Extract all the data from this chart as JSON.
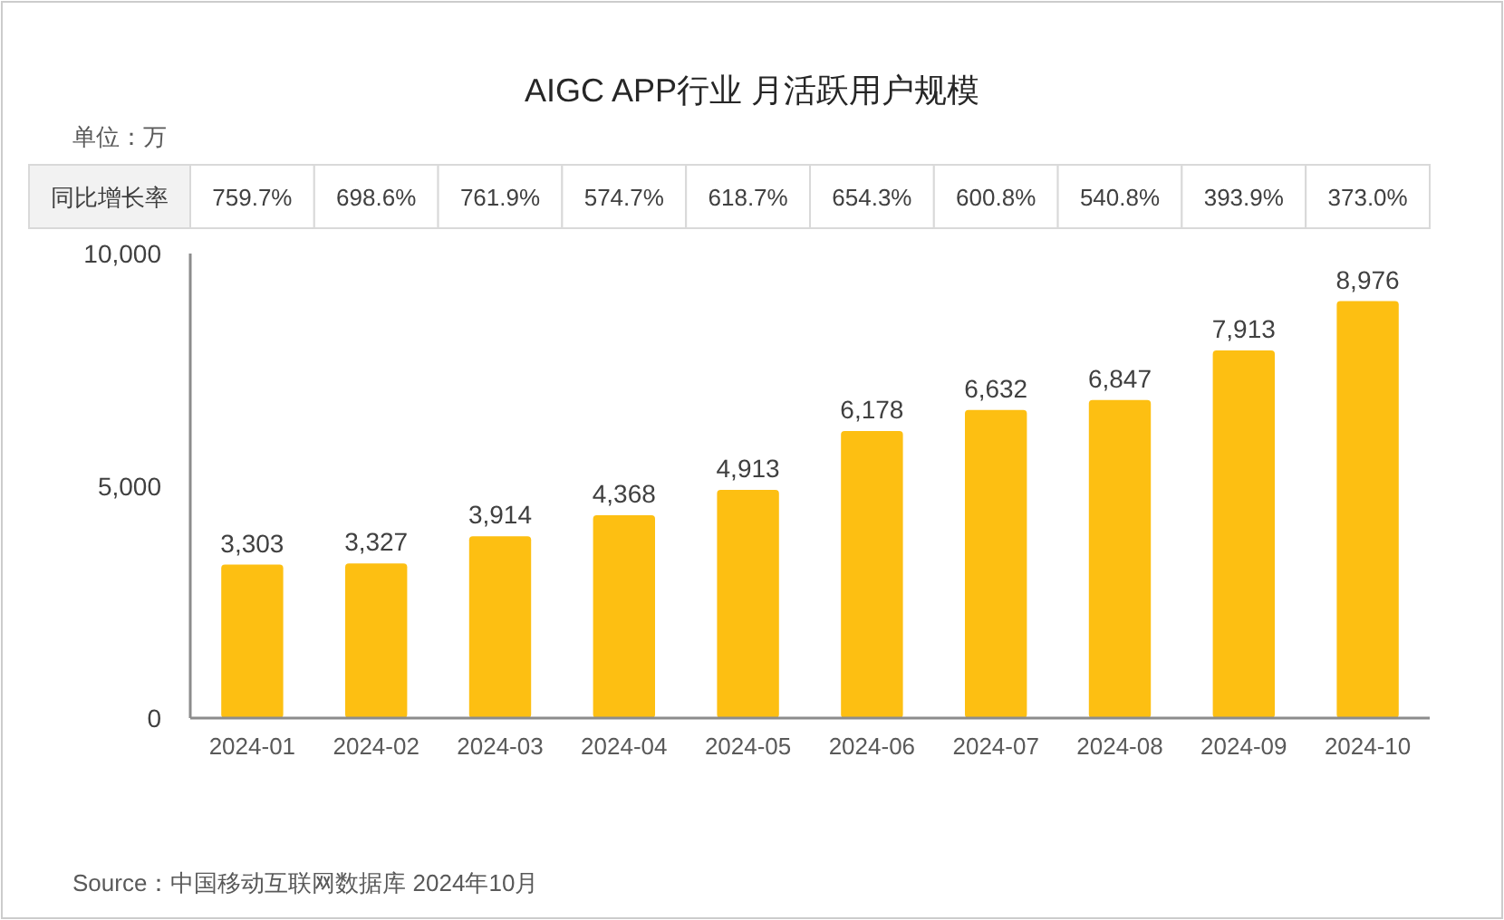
{
  "chart_data": {
    "type": "bar",
    "title": "AIGC APP行业 月活跃用户规模",
    "ylabel": "单位：万",
    "categories": [
      "2024-01",
      "2024-02",
      "2024-03",
      "2024-04",
      "2024-05",
      "2024-06",
      "2024-07",
      "2024-08",
      "2024-09",
      "2024-10"
    ],
    "values": [
      3303,
      3327,
      3914,
      4368,
      4913,
      6178,
      6632,
      6847,
      7913,
      8976
    ],
    "color": "#fdbf12",
    "value_labels": [
      "3,303",
      "3,327",
      "3,914",
      "4,368",
      "4,913",
      "6,178",
      "6,632",
      "6,847",
      "7,913",
      "8,976"
    ],
    "ylim": [
      0,
      10000
    ],
    "yticks": [
      0,
      {
        "value": 5000,
        "label": "5,000"
      },
      {
        "value": 10000,
        "label": "10,000"
      }
    ],
    "annotations": [
      "同比增长率",
      "759.7%",
      "698.6%",
      "761.9%",
      "574.7%",
      "618.7%",
      "654.3%",
      "600.8%",
      "540.8%",
      "393.9%",
      "373.0%",
      "Source：中国移动互联网数据库 2024年10月"
    ]
  }
}
